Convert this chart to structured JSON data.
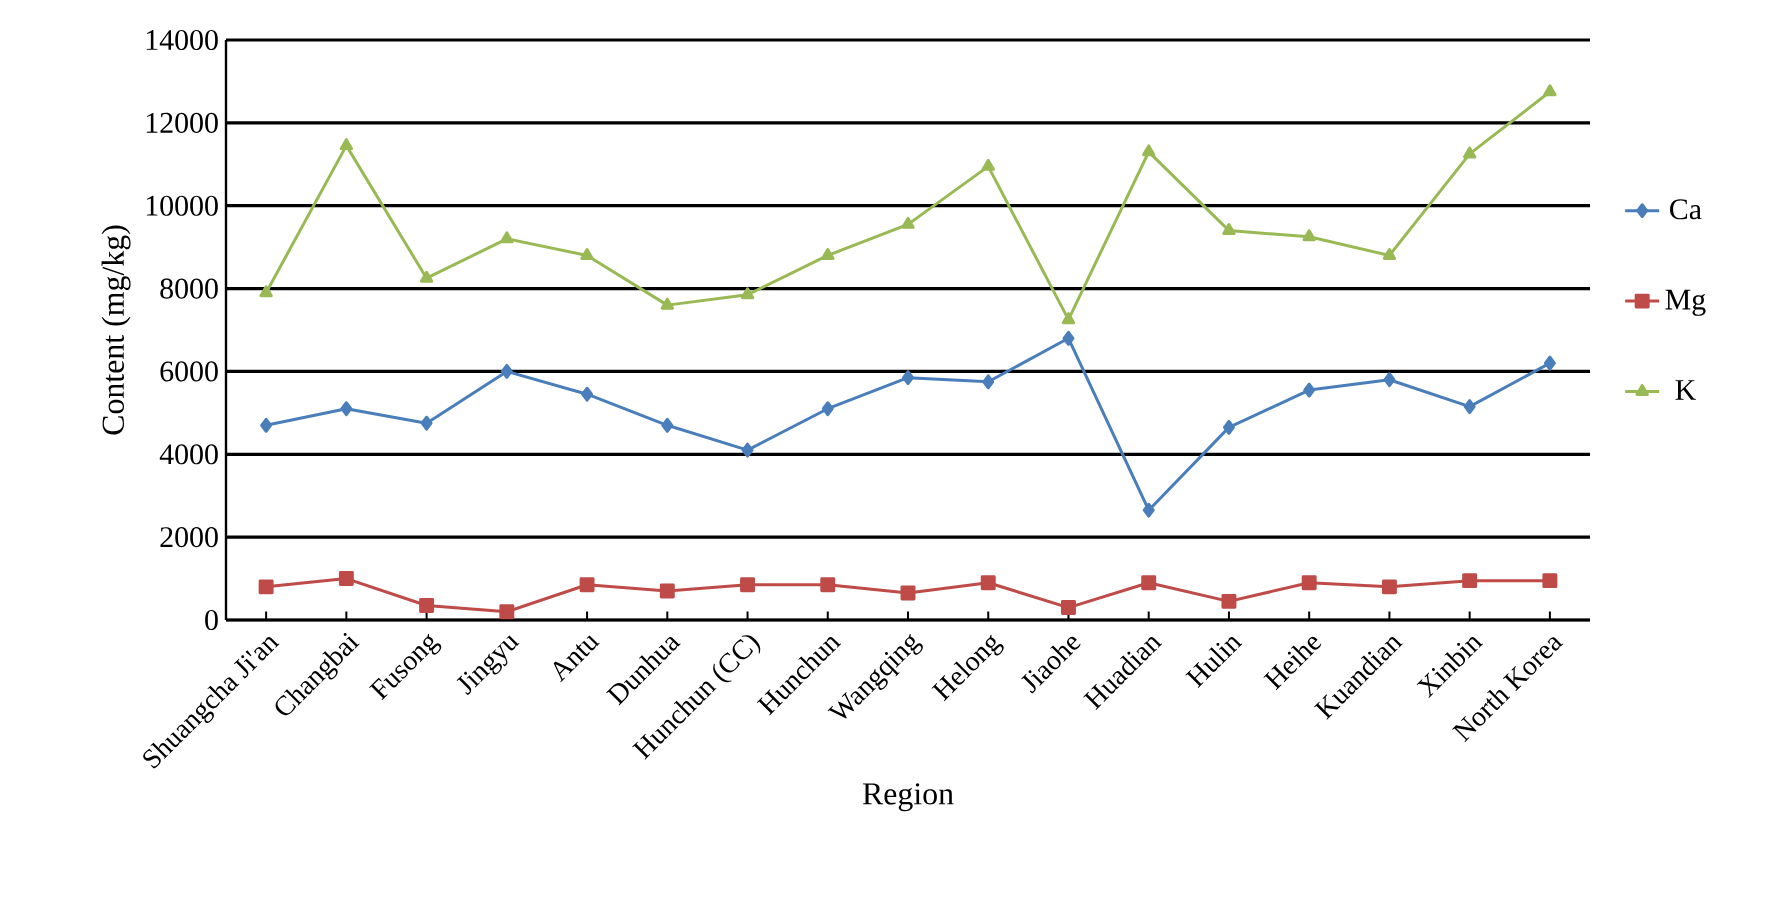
{
  "chart_data": {
    "type": "line",
    "xlabel": "Region",
    "ylabel": "Content (mg/kg)",
    "categories": [
      "Shuangcha Ji'an",
      "Changbai",
      "Fusong",
      "Jingyu",
      "Antu",
      "Dunhua",
      "Hunchun (CC)",
      "Hunchun",
      "Wangqing",
      "Helong",
      "Jiaohe",
      "Huadian",
      "Hulin",
      "Heihe",
      "Kuandian",
      "Xinbin",
      "North Korea"
    ],
    "series": [
      {
        "name": "Ca",
        "color": "#4a7ebb",
        "marker": "diamond",
        "values": [
          4700,
          5100,
          4750,
          6000,
          5450,
          4700,
          4100,
          5100,
          5850,
          5750,
          6800,
          2650,
          4650,
          5550,
          5800,
          5150,
          6200
        ]
      },
      {
        "name": "Mg",
        "color": "#be4b48",
        "marker": "square",
        "values": [
          800,
          1000,
          350,
          200,
          850,
          700,
          850,
          850,
          650,
          900,
          300,
          900,
          450,
          900,
          800,
          950,
          950
        ]
      },
      {
        "name": "K",
        "color": "#98b954",
        "marker": "triangle",
        "values": [
          7900,
          11450,
          8250,
          9200,
          8800,
          7600,
          7850,
          8800,
          9550,
          10950,
          7250,
          11300,
          9400,
          9250,
          8800,
          11250,
          12750
        ]
      }
    ],
    "ylim": [
      0,
      14000
    ],
    "yticks": [
      0,
      2000,
      4000,
      6000,
      8000,
      10000,
      12000,
      14000
    ],
    "grid": "y",
    "legend": "right"
  }
}
